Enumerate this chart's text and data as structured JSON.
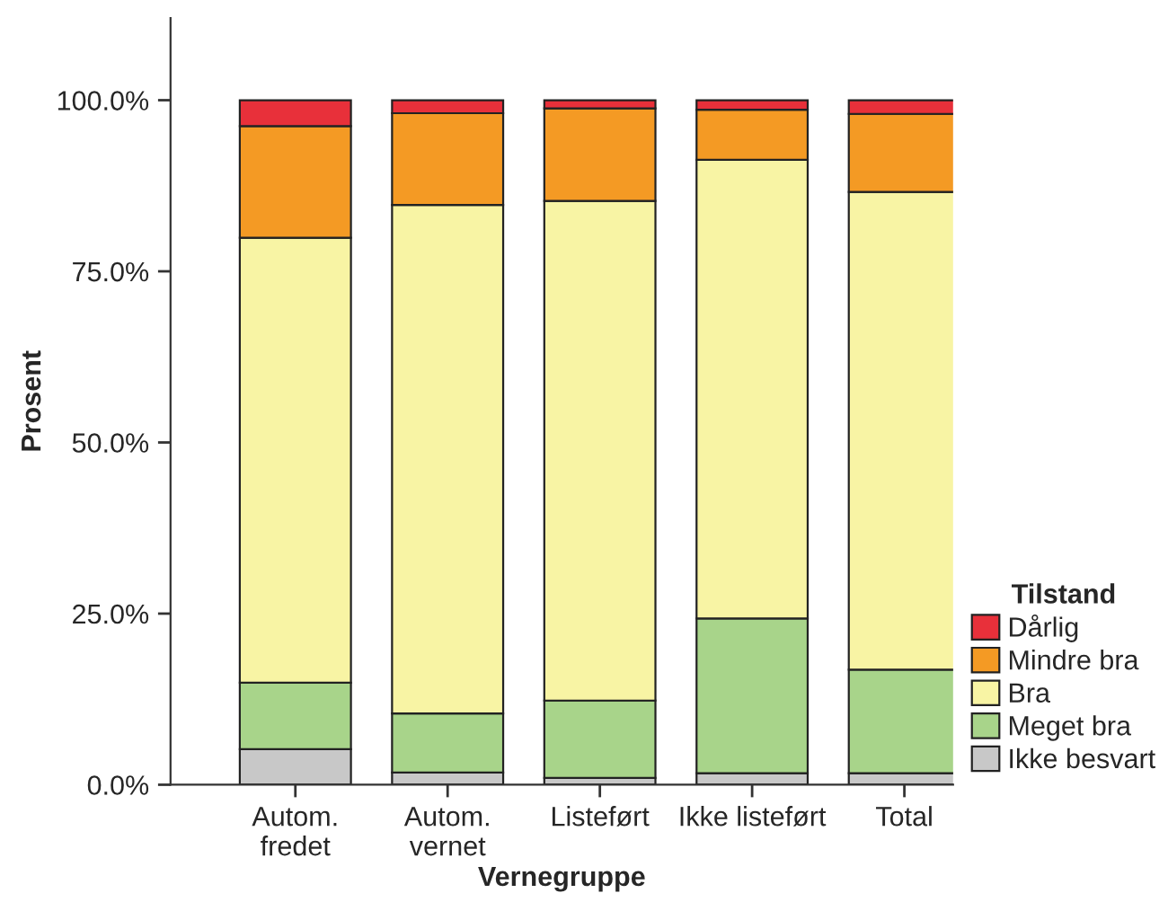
{
  "chart_data": {
    "type": "bar",
    "stacked": true,
    "xlabel": "Vernegruppe",
    "ylabel": "Prosent",
    "legend_title": "Tilstand",
    "legend": "bottom right",
    "categories": [
      "Autom.\nfredet",
      "Autom.\nvernet",
      "Listeført",
      "Ikke listeført",
      "Total"
    ],
    "series": [
      {
        "name": "Ikke besvart",
        "color": "#c8c8c8",
        "values": [
          5.2,
          1.8,
          1.0,
          1.7,
          1.7
        ]
      },
      {
        "name": "Meget bra",
        "color": "#a8d48a",
        "values": [
          9.7,
          8.6,
          11.3,
          22.6,
          15.1
        ]
      },
      {
        "name": "Bra",
        "color": "#f8f4a4",
        "values": [
          65.0,
          74.3,
          73.0,
          67.0,
          69.8
        ]
      },
      {
        "name": "Mindre bra",
        "color": "#f49a24",
        "values": [
          16.3,
          13.4,
          13.5,
          7.3,
          11.4
        ]
      },
      {
        "name": "Dårlig",
        "color": "#e8303a",
        "values": [
          3.8,
          1.9,
          1.2,
          1.4,
          2.0
        ]
      }
    ],
    "ylim": [
      0,
      112
    ],
    "yticks": [
      {
        "value": 0,
        "label": "0.0%"
      },
      {
        "value": 25,
        "label": "25.0%"
      },
      {
        "value": 50,
        "label": "50.0%"
      },
      {
        "value": 75,
        "label": "75.0%"
      },
      {
        "value": 100,
        "label": "100.0%"
      }
    ],
    "grid": false
  }
}
